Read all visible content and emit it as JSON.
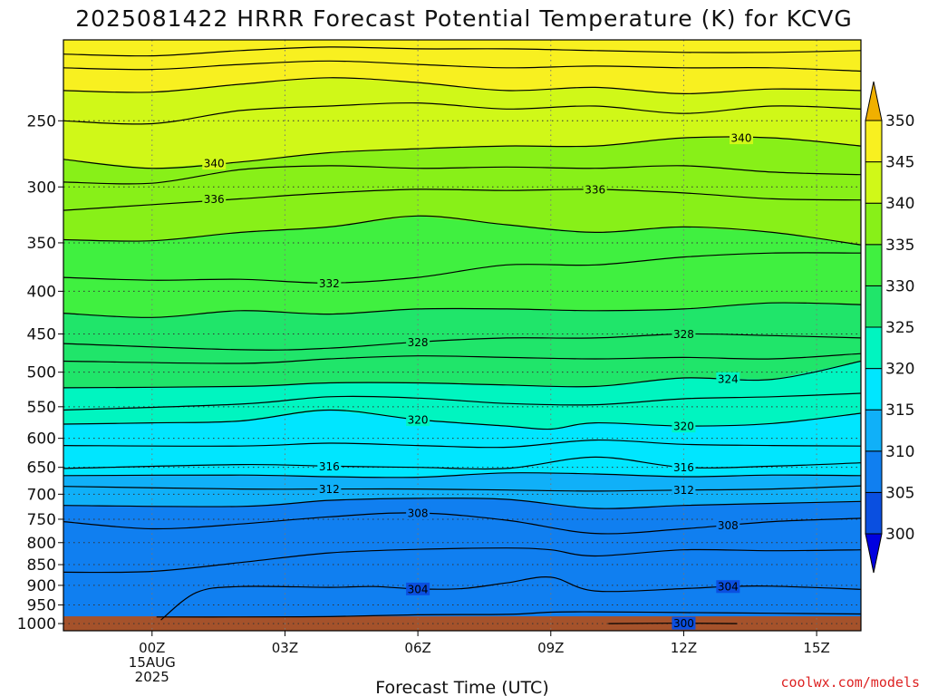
{
  "chart_data": {
    "type": "heatmap",
    "title": "2025081422 HRRR Forecast Potential Temperature (K) for KCVG",
    "xlabel": "Forecast Time (UTC)",
    "ylabel": "",
    "credit": "coolwx.com/models",
    "x_ticks": [
      {
        "hour": 0,
        "label": "00Z",
        "sub1": "15AUG",
        "sub2": "2025"
      },
      {
        "hour": 3,
        "label": "03Z"
      },
      {
        "hour": 6,
        "label": "06Z"
      },
      {
        "hour": 9,
        "label": "09Z"
      },
      {
        "hour": 12,
        "label": "12Z"
      },
      {
        "hour": 15,
        "label": "15Z"
      }
    ],
    "xlim": [
      -2,
      16
    ],
    "y_ticks": [
      250,
      300,
      350,
      400,
      450,
      500,
      550,
      600,
      650,
      700,
      750,
      800,
      850,
      900,
      950,
      1000
    ],
    "ylim": [
      1020,
      200
    ],
    "y_scale": "log-pressure",
    "colorbar": {
      "levels": [
        300,
        305,
        310,
        315,
        320,
        325,
        330,
        335,
        340,
        345,
        350
      ],
      "colors": [
        "#0000e0",
        "#0a4fe0",
        "#107ff0",
        "#10b0f8",
        "#00e6ff",
        "#00f5c0",
        "#20e56a",
        "#40f040",
        "#88f018",
        "#d0f818",
        "#f8f020",
        "#f0b000"
      ]
    },
    "ground_color": "#a5522b",
    "series": [
      {
        "value": 300,
        "points": [
          [
            10.3,
            1000
          ],
          [
            11.8,
            999
          ],
          [
            13.2,
            1000
          ]
        ]
      },
      {
        "value": 302,
        "points": [
          [
            0.1,
            982
          ],
          [
            2,
            982
          ],
          [
            4,
            981
          ],
          [
            6,
            976
          ],
          [
            8,
            975
          ],
          [
            9,
            969
          ],
          [
            10,
            968
          ],
          [
            12,
            970
          ],
          [
            14,
            972
          ],
          [
            16,
            974
          ]
        ]
      },
      {
        "value": 304,
        "points": [
          [
            0.2,
            990
          ],
          [
            1,
            918
          ],
          [
            2,
            903
          ],
          [
            4,
            905
          ],
          [
            5,
            903
          ],
          [
            6,
            909
          ],
          [
            7,
            908
          ],
          [
            8,
            894
          ],
          [
            9,
            880
          ],
          [
            10,
            914
          ],
          [
            12,
            908
          ],
          [
            13,
            903
          ],
          [
            14,
            902
          ],
          [
            16,
            910
          ]
        ]
      },
      {
        "value": 306,
        "points": [
          [
            -2,
            868
          ],
          [
            0,
            866
          ],
          [
            2,
            845
          ],
          [
            4,
            823
          ],
          [
            6,
            815
          ],
          [
            8,
            812
          ],
          [
            9,
            816
          ],
          [
            10,
            830
          ],
          [
            12,
            816
          ],
          [
            14,
            818
          ],
          [
            16,
            816
          ]
        ]
      },
      {
        "value": 308,
        "points": [
          [
            -2,
            755
          ],
          [
            0,
            770
          ],
          [
            2,
            760
          ],
          [
            4,
            745
          ],
          [
            6,
            737
          ],
          [
            8,
            752
          ],
          [
            10,
            780
          ],
          [
            12,
            770
          ],
          [
            14,
            755
          ],
          [
            16,
            748
          ]
        ]
      },
      {
        "value": 310,
        "points": [
          [
            -2,
            722
          ],
          [
            2,
            724
          ],
          [
            4,
            712
          ],
          [
            6,
            708
          ],
          [
            8,
            710
          ],
          [
            10,
            728
          ],
          [
            12,
            722
          ],
          [
            14,
            718
          ],
          [
            16,
            714
          ]
        ]
      },
      {
        "value": 312,
        "points": [
          [
            -2,
            685
          ],
          [
            2,
            690
          ],
          [
            4,
            690
          ],
          [
            6,
            690
          ],
          [
            8,
            692
          ],
          [
            10,
            694
          ],
          [
            12,
            692
          ],
          [
            14,
            690
          ],
          [
            16,
            684
          ]
        ]
      },
      {
        "value": 314,
        "points": [
          [
            -2,
            665
          ],
          [
            2,
            664
          ],
          [
            4,
            667
          ],
          [
            6,
            668
          ],
          [
            8,
            660
          ],
          [
            10,
            662
          ],
          [
            12,
            667
          ],
          [
            14,
            664
          ],
          [
            16,
            665
          ]
        ]
      },
      {
        "value": 316,
        "points": [
          [
            -2,
            652
          ],
          [
            2,
            645
          ],
          [
            4,
            648
          ],
          [
            6,
            650
          ],
          [
            8,
            652
          ],
          [
            10,
            632
          ],
          [
            12,
            650
          ],
          [
            14,
            648
          ],
          [
            16,
            642
          ]
        ]
      },
      {
        "value": 318,
        "points": [
          [
            -2,
            612
          ],
          [
            2,
            613
          ],
          [
            4,
            608
          ],
          [
            6,
            612
          ],
          [
            8,
            615
          ],
          [
            10,
            603
          ],
          [
            12,
            610
          ],
          [
            14,
            612
          ],
          [
            16,
            613
          ]
        ]
      },
      {
        "value": 320,
        "points": [
          [
            -2,
            577
          ],
          [
            0,
            575
          ],
          [
            2,
            572
          ],
          [
            4,
            555
          ],
          [
            6,
            570
          ],
          [
            8,
            580
          ],
          [
            9,
            585
          ],
          [
            10,
            575
          ],
          [
            12,
            580
          ],
          [
            14,
            576
          ],
          [
            16,
            560
          ]
        ]
      },
      {
        "value": 322,
        "points": [
          [
            -2,
            555
          ],
          [
            2,
            546
          ],
          [
            4,
            535
          ],
          [
            6,
            537
          ],
          [
            8,
            545
          ],
          [
            10,
            547
          ],
          [
            12,
            538
          ],
          [
            14,
            535
          ],
          [
            16,
            530
          ]
        ]
      },
      {
        "value": 324,
        "points": [
          [
            -2,
            522
          ],
          [
            2,
            520
          ],
          [
            4,
            515
          ],
          [
            6,
            515
          ],
          [
            8,
            518
          ],
          [
            10,
            520
          ],
          [
            12,
            508
          ],
          [
            14,
            510
          ],
          [
            16,
            485
          ]
        ]
      },
      {
        "value": 326,
        "points": [
          [
            -2,
            485
          ],
          [
            2,
            488
          ],
          [
            4,
            482
          ],
          [
            6,
            478
          ],
          [
            8,
            480
          ],
          [
            10,
            482
          ],
          [
            12,
            480
          ],
          [
            14,
            482
          ],
          [
            16,
            475
          ]
        ]
      },
      {
        "value": 328,
        "points": [
          [
            -2,
            462
          ],
          [
            2,
            470
          ],
          [
            4,
            468
          ],
          [
            6,
            460
          ],
          [
            8,
            455
          ],
          [
            10,
            455
          ],
          [
            12,
            450
          ],
          [
            14,
            452
          ],
          [
            16,
            455
          ]
        ]
      },
      {
        "value": 330,
        "points": [
          [
            -2,
            425
          ],
          [
            0,
            430
          ],
          [
            2,
            422
          ],
          [
            4,
            426
          ],
          [
            6,
            420
          ],
          [
            8,
            420
          ],
          [
            10,
            422
          ],
          [
            12,
            420
          ],
          [
            14,
            413
          ],
          [
            16,
            415
          ]
        ]
      },
      {
        "value": 332,
        "points": [
          [
            -2,
            385
          ],
          [
            0,
            388
          ],
          [
            2,
            387
          ],
          [
            4,
            391
          ],
          [
            6,
            385
          ],
          [
            8,
            372
          ],
          [
            10,
            372
          ],
          [
            12,
            364
          ],
          [
            14,
            360
          ],
          [
            16,
            360
          ]
        ]
      },
      {
        "value": 334,
        "points": [
          [
            -2,
            347
          ],
          [
            0,
            348
          ],
          [
            2,
            340
          ],
          [
            4,
            335
          ],
          [
            6,
            325
          ],
          [
            8,
            333
          ],
          [
            10,
            340
          ],
          [
            12,
            335
          ],
          [
            14,
            340
          ],
          [
            16,
            352
          ]
        ]
      },
      {
        "value": 336,
        "points": [
          [
            -2,
            320
          ],
          [
            0,
            315
          ],
          [
            2,
            310
          ],
          [
            4,
            305
          ],
          [
            6,
            302
          ],
          [
            8,
            303
          ],
          [
            10,
            302
          ],
          [
            12,
            305
          ],
          [
            14,
            310
          ],
          [
            16,
            311
          ]
        ]
      },
      {
        "value": 338,
        "points": [
          [
            -2,
            296
          ],
          [
            0,
            297
          ],
          [
            2,
            286
          ],
          [
            4,
            283
          ],
          [
            6,
            285
          ],
          [
            8,
            284
          ],
          [
            10,
            285
          ],
          [
            12,
            283
          ],
          [
            14,
            288
          ],
          [
            16,
            290
          ]
        ]
      },
      {
        "value": 340,
        "points": [
          [
            -2,
            278
          ],
          [
            0,
            285
          ],
          [
            2,
            280
          ],
          [
            4,
            273
          ],
          [
            6,
            270
          ],
          [
            8,
            268
          ],
          [
            10,
            268
          ],
          [
            12,
            262
          ],
          [
            14,
            262
          ],
          [
            16,
            268
          ]
        ]
      },
      {
        "value": 342,
        "points": [
          [
            -2,
            250
          ],
          [
            0,
            252
          ],
          [
            2,
            243
          ],
          [
            4,
            240
          ],
          [
            6,
            238
          ],
          [
            8,
            242
          ],
          [
            10,
            240
          ],
          [
            12,
            245
          ],
          [
            14,
            240
          ],
          [
            16,
            242
          ]
        ]
      },
      {
        "value": 344,
        "points": [
          [
            -2,
            230
          ],
          [
            0,
            231
          ],
          [
            2,
            226
          ],
          [
            4,
            222
          ],
          [
            6,
            225
          ],
          [
            8,
            230
          ],
          [
            10,
            228
          ],
          [
            12,
            232
          ],
          [
            14,
            229
          ],
          [
            16,
            230
          ]
        ]
      },
      {
        "value": 346,
        "points": [
          [
            -2,
            216
          ],
          [
            0,
            217
          ],
          [
            2,
            214
          ],
          [
            4,
            212
          ],
          [
            6,
            214
          ],
          [
            8,
            216
          ],
          [
            10,
            215
          ],
          [
            12,
            216
          ],
          [
            14,
            216
          ],
          [
            16,
            218
          ]
        ]
      },
      {
        "value": 348,
        "points": [
          [
            -2,
            208
          ],
          [
            0,
            209
          ],
          [
            2,
            206
          ],
          [
            4,
            204
          ],
          [
            6,
            205
          ],
          [
            8,
            205
          ],
          [
            10,
            206
          ],
          [
            12,
            207
          ],
          [
            14,
            207
          ],
          [
            16,
            206
          ]
        ]
      }
    ],
    "contour_labels": [
      {
        "text": "340",
        "x": 1.4,
        "p": 281
      },
      {
        "text": "340",
        "x": 13.3,
        "p": 262
      },
      {
        "text": "336",
        "x": 1.4,
        "p": 310
      },
      {
        "text": "336",
        "x": 10.0,
        "p": 302
      },
      {
        "text": "332",
        "x": 4.0,
        "p": 391
      },
      {
        "text": "328",
        "x": 6.0,
        "p": 460
      },
      {
        "text": "328",
        "x": 12.0,
        "p": 450
      },
      {
        "text": "324",
        "x": 13.0,
        "p": 509
      },
      {
        "text": "320",
        "x": 6.0,
        "p": 570
      },
      {
        "text": "320",
        "x": 12.0,
        "p": 580
      },
      {
        "text": "316",
        "x": 4.0,
        "p": 648
      },
      {
        "text": "316",
        "x": 12.0,
        "p": 650
      },
      {
        "text": "312",
        "x": 4.0,
        "p": 690
      },
      {
        "text": "312",
        "x": 12.0,
        "p": 692
      },
      {
        "text": "308",
        "x": 6.0,
        "p": 737
      },
      {
        "text": "308",
        "x": 13.0,
        "p": 762
      },
      {
        "text": "304",
        "x": 6.0,
        "p": 909
      },
      {
        "text": "304",
        "x": 13.0,
        "p": 903
      },
      {
        "text": "300",
        "x": 12.0,
        "p": 999
      }
    ]
  }
}
